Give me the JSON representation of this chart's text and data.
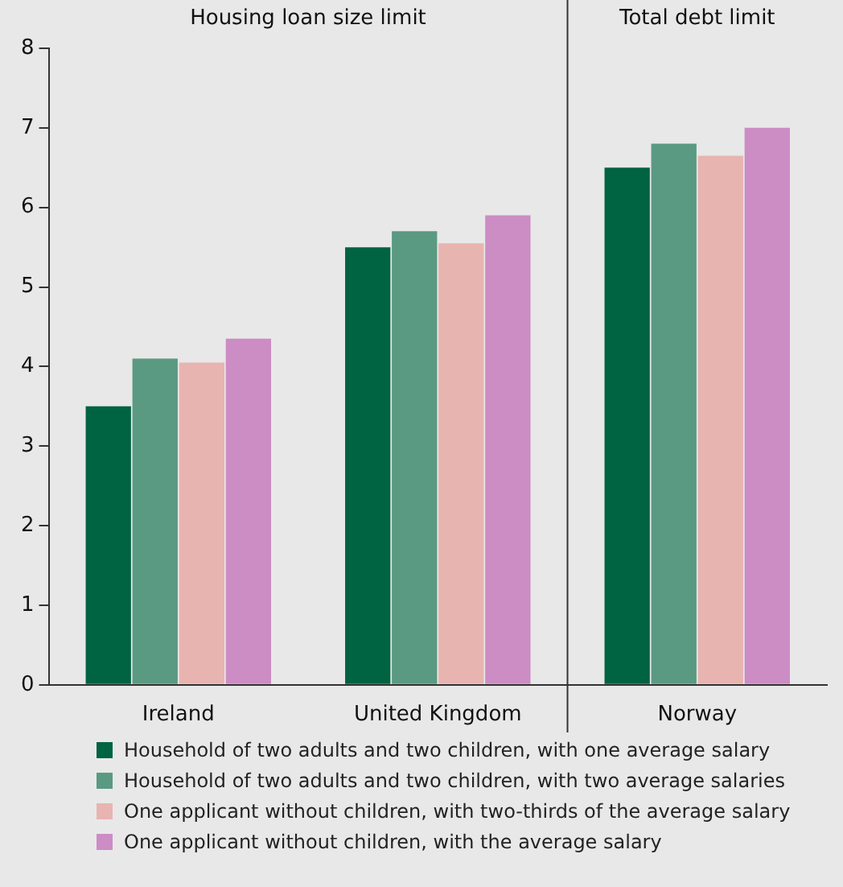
{
  "chart_data": {
    "type": "bar",
    "categories": [
      "Ireland",
      "United Kingdom",
      "Norway"
    ],
    "series": [
      {
        "name": "Household of two adults and two children, with one average salary",
        "color": "#006342",
        "values": [
          3.5,
          5.5,
          6.5
        ]
      },
      {
        "name": "Household of two adults and two children, with two average salaries",
        "color": "#5a9a82",
        "values": [
          4.1,
          5.7,
          6.8
        ]
      },
      {
        "name": "One applicant without children, with two-thirds of the average salary",
        "color": "#e8b4b0",
        "values": [
          4.05,
          5.55,
          6.65
        ]
      },
      {
        "name": "One applicant without children, with the average salary",
        "color": "#cc8cc4",
        "values": [
          4.35,
          5.9,
          7
        ]
      }
    ],
    "annotations": [
      "Housing loan size limit",
      "Total debt limit"
    ],
    "ylim": [
      0,
      8
    ],
    "yticks": [
      0,
      1,
      2,
      3,
      4,
      5,
      6,
      7,
      8
    ],
    "grid": false,
    "legend": "bottom"
  }
}
